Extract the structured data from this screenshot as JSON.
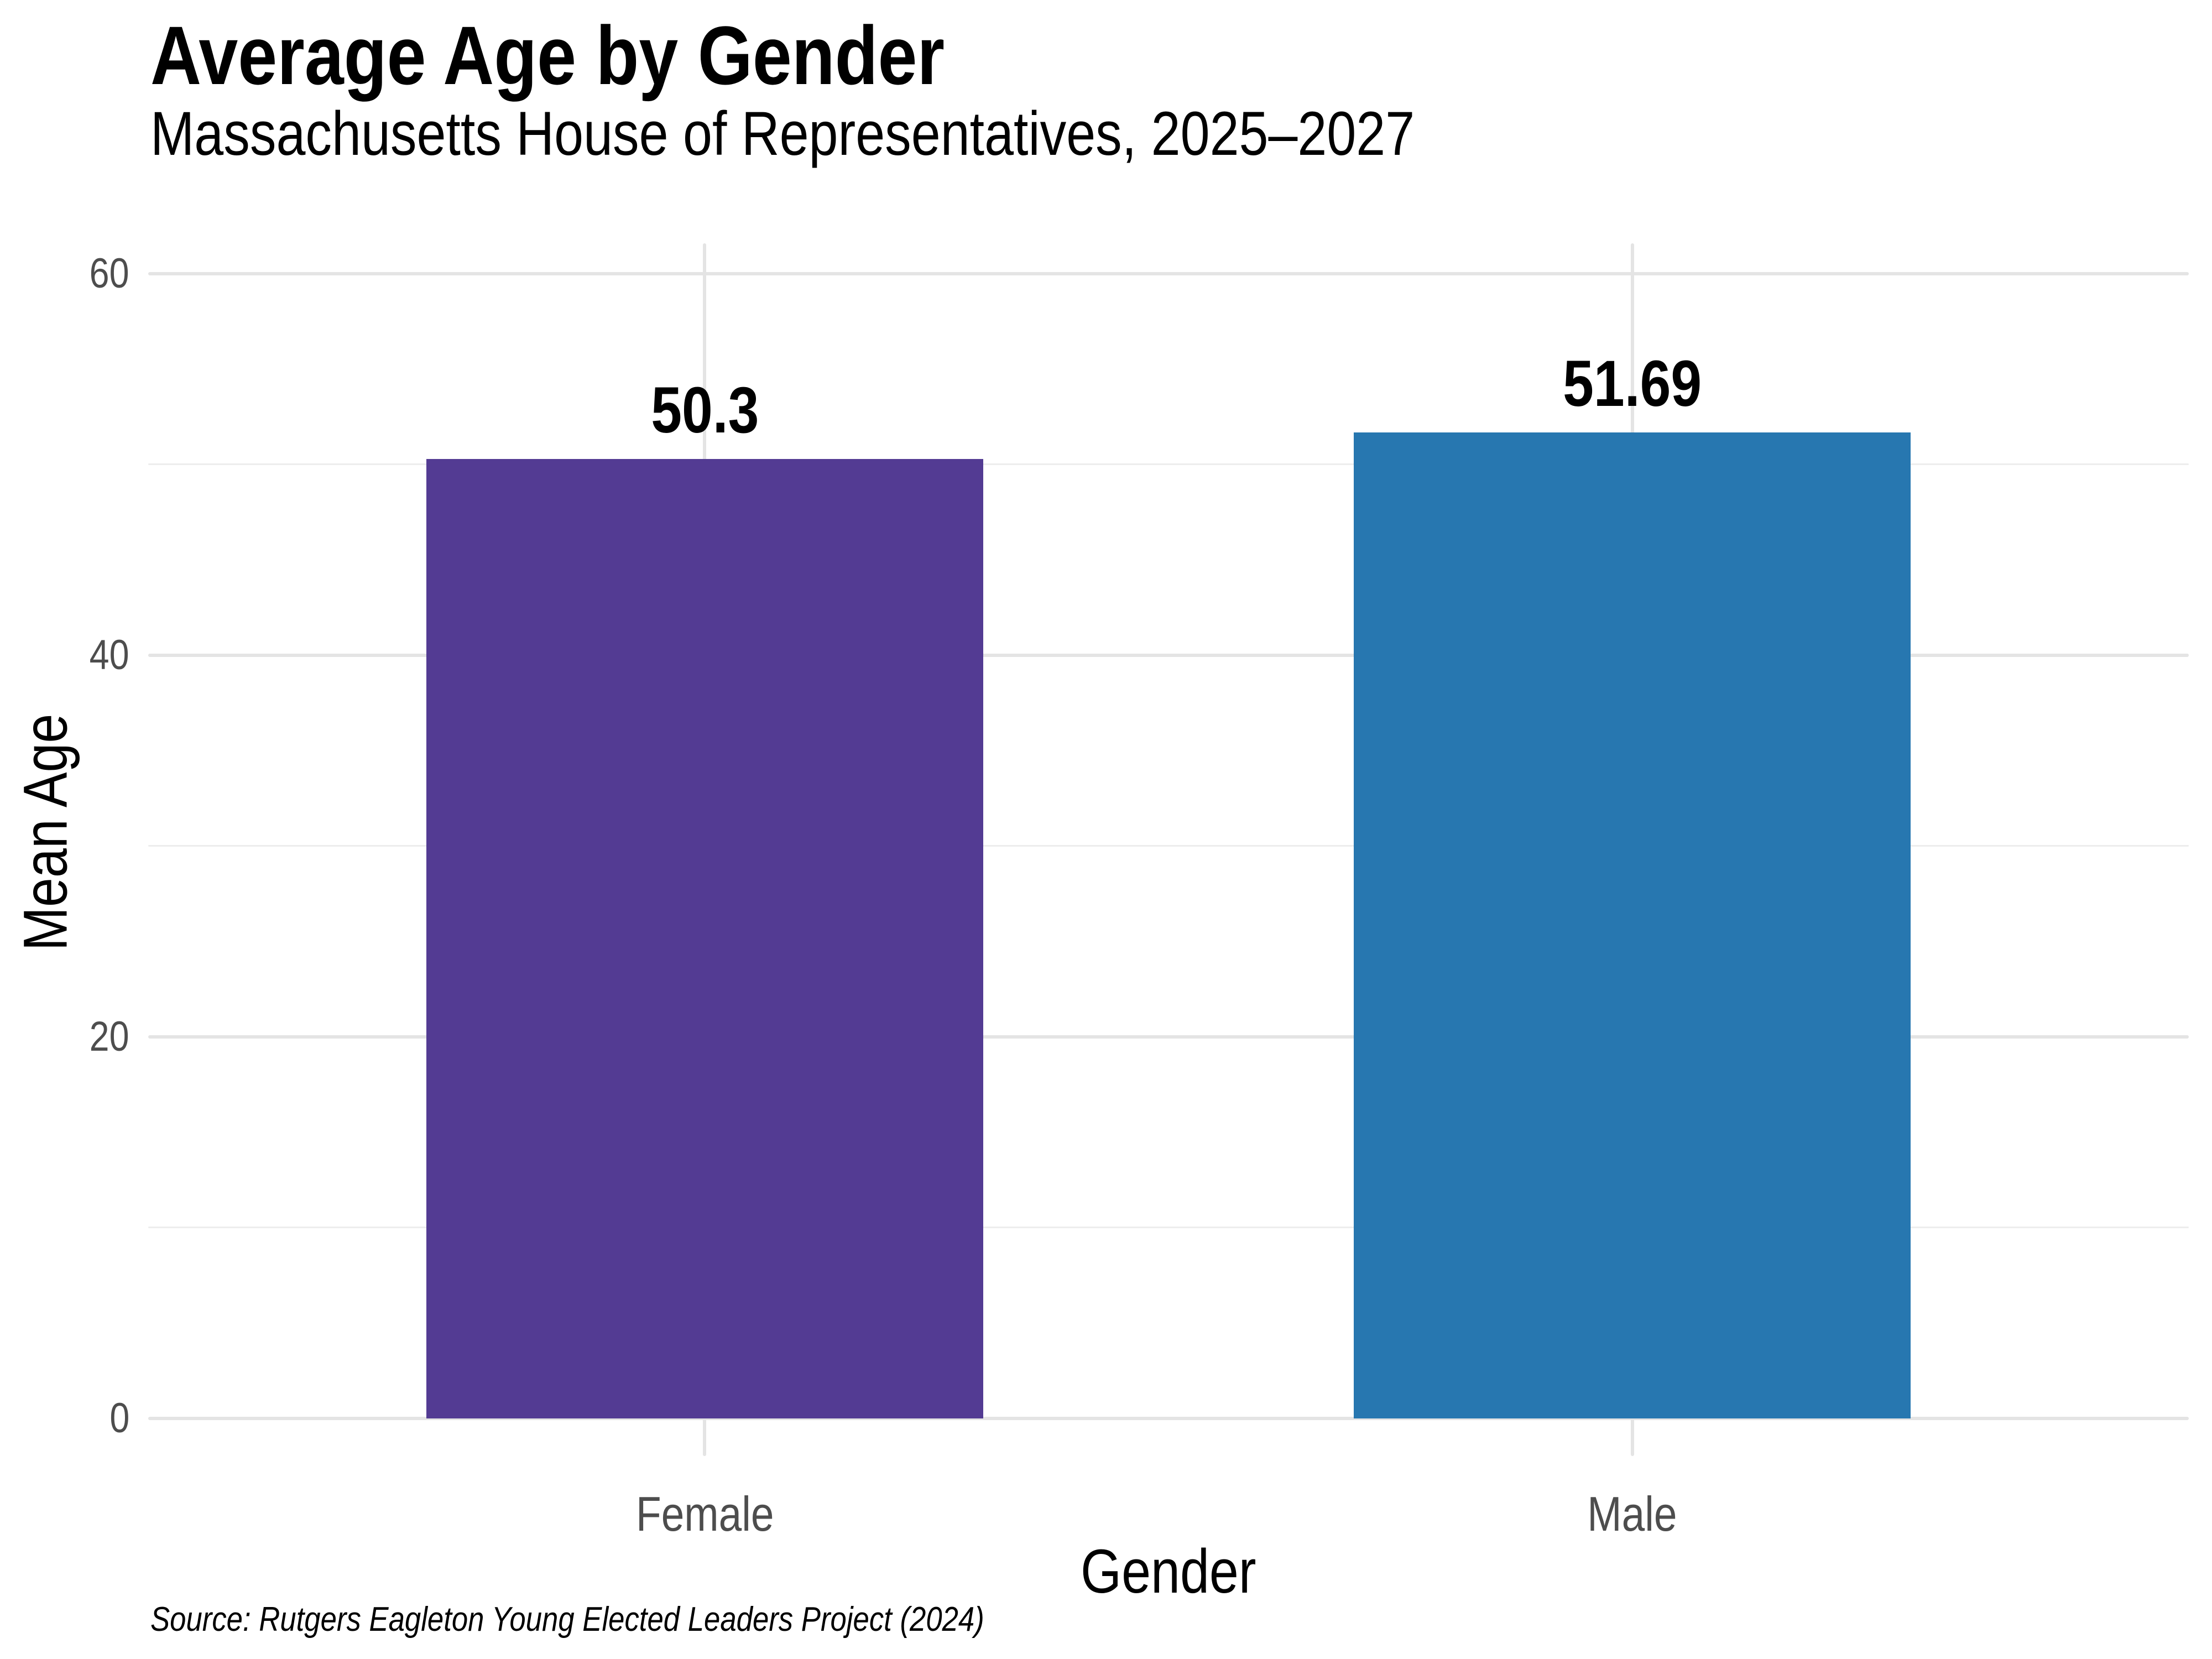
{
  "chart_data": {
    "type": "bar",
    "title": "Average Age by Gender",
    "subtitle": "Massachusetts House of Representatives, 2025–2027",
    "xlabel": "Gender",
    "ylabel": "Mean Age",
    "caption": "Source: Rutgers Eagleton Young Elected Leaders Project (2024)",
    "categories": [
      "Female",
      "Male"
    ],
    "values": [
      50.3,
      51.69
    ],
    "value_labels": [
      "50.3",
      "51.69"
    ],
    "bar_colors": [
      "#533B93",
      "#2777B0"
    ],
    "ylim": [
      0,
      63
    ],
    "yticks": [
      0,
      20,
      40,
      60
    ],
    "ytick_labels": [
      "0",
      "20",
      "40",
      "60"
    ],
    "minor_gridlines": [
      10,
      30,
      50
    ],
    "grid": true,
    "legend_position": "none",
    "styles": {
      "background": "#FFFFFF",
      "major_grid_color": "#E4E4E4",
      "minor_grid_color": "#EDEDED",
      "tick_label_color": "#4D4D4D",
      "text_color": "#000000"
    }
  }
}
